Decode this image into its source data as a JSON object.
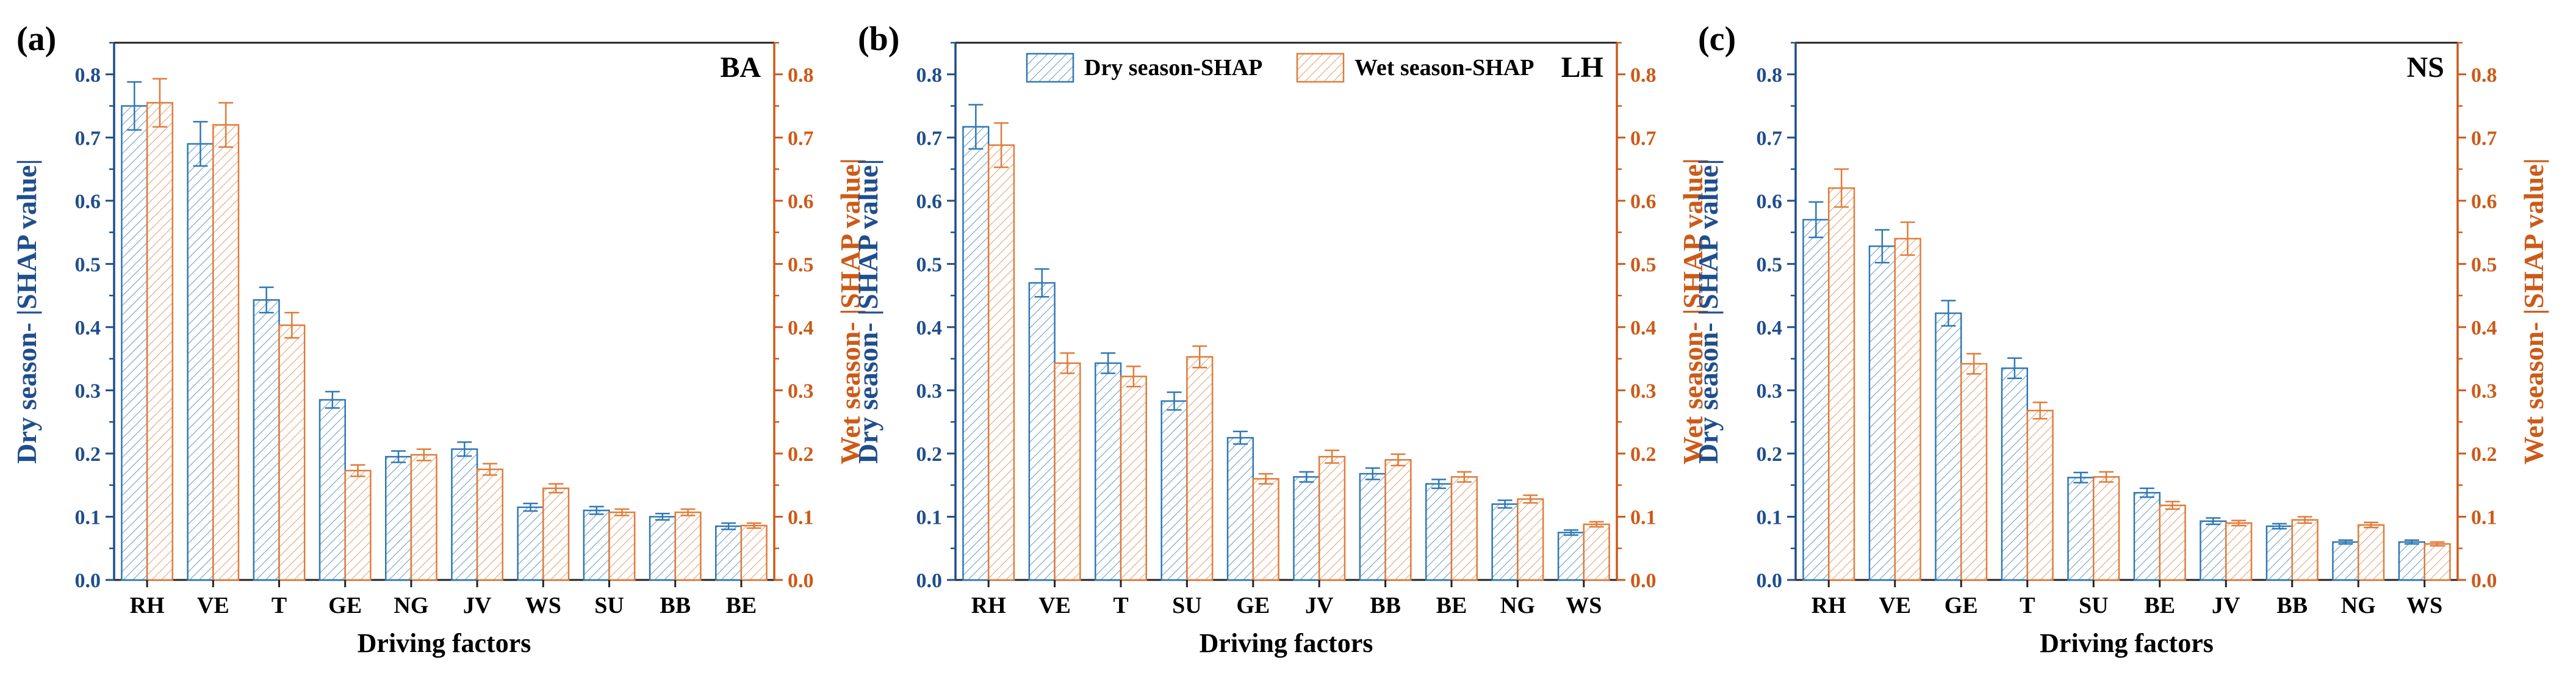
{
  "colors": {
    "dry": "#2f78b4",
    "wet": "#e07b39",
    "dry_axis": "#1f4e8c",
    "wet_axis": "#cc5a18",
    "frame": "#222222"
  },
  "legend": {
    "dry": "Dry season-SHAP",
    "wet": "Wet season-SHAP"
  },
  "chart_data": [
    {
      "type": "bar",
      "panel_label": "(a)",
      "site": "BA",
      "xlabel": "Driving factors",
      "ylabel_left": "Dry season- |SHAP value|",
      "ylabel_right": "Wet season- |SHAP value|",
      "ylim": [
        0,
        0.85
      ],
      "yticks": [
        "0.0",
        "0.1",
        "0.2",
        "0.3",
        "0.4",
        "0.5",
        "0.6",
        "0.7",
        "0.8"
      ],
      "categories": [
        "RH",
        "VE",
        "T",
        "GE",
        "NG",
        "JV",
        "WS",
        "SU",
        "BB",
        "BE"
      ],
      "series": [
        {
          "name": "Dry season-SHAP",
          "values": [
            0.75,
            0.69,
            0.443,
            0.285,
            0.195,
            0.207,
            0.115,
            0.11,
            0.1,
            0.085
          ],
          "errors": [
            0.038,
            0.035,
            0.02,
            0.013,
            0.009,
            0.011,
            0.006,
            0.006,
            0.005,
            0.005
          ]
        },
        {
          "name": "Wet season-SHAP",
          "values": [
            0.755,
            0.72,
            0.403,
            0.173,
            0.198,
            0.175,
            0.145,
            0.107,
            0.107,
            0.086
          ],
          "errors": [
            0.038,
            0.035,
            0.02,
            0.009,
            0.009,
            0.009,
            0.007,
            0.005,
            0.005,
            0.004
          ]
        }
      ]
    },
    {
      "type": "bar",
      "panel_label": "(b)",
      "site": "LH",
      "xlabel": "Driving factors",
      "ylabel_left": "Dry season- |SHAP value|",
      "ylabel_right": "Wet season- |SHAP value|",
      "ylim": [
        0,
        0.85
      ],
      "yticks": [
        "0.0",
        "0.1",
        "0.2",
        "0.3",
        "0.4",
        "0.5",
        "0.6",
        "0.7",
        "0.8"
      ],
      "categories": [
        "RH",
        "VE",
        "T",
        "SU",
        "GE",
        "JV",
        "BB",
        "BE",
        "NG",
        "WS"
      ],
      "series": [
        {
          "name": "Dry season-SHAP",
          "values": [
            0.717,
            0.47,
            0.343,
            0.283,
            0.225,
            0.163,
            0.168,
            0.152,
            0.12,
            0.075
          ],
          "errors": [
            0.035,
            0.022,
            0.016,
            0.014,
            0.01,
            0.008,
            0.009,
            0.007,
            0.006,
            0.004
          ]
        },
        {
          "name": "Wet season-SHAP",
          "values": [
            0.688,
            0.343,
            0.322,
            0.353,
            0.16,
            0.195,
            0.19,
            0.163,
            0.128,
            0.088
          ],
          "errors": [
            0.035,
            0.016,
            0.016,
            0.017,
            0.008,
            0.01,
            0.009,
            0.008,
            0.006,
            0.004
          ]
        }
      ]
    },
    {
      "type": "bar",
      "panel_label": "(c)",
      "site": "NS",
      "xlabel": "Driving factors",
      "ylabel_left": "Dry season- |SHAP value|",
      "ylabel_right": "Wet season- |SHAP value|",
      "ylim": [
        0,
        0.85
      ],
      "yticks": [
        "0.0",
        "0.1",
        "0.2",
        "0.3",
        "0.4",
        "0.5",
        "0.6",
        "0.7",
        "0.8"
      ],
      "categories": [
        "RH",
        "VE",
        "GE",
        "T",
        "SU",
        "BE",
        "JV",
        "BB",
        "NG",
        "WS"
      ],
      "series": [
        {
          "name": "Dry season-SHAP",
          "values": [
            0.57,
            0.528,
            0.422,
            0.335,
            0.162,
            0.138,
            0.093,
            0.085,
            0.06,
            0.06
          ],
          "errors": [
            0.028,
            0.026,
            0.02,
            0.016,
            0.008,
            0.007,
            0.005,
            0.004,
            0.003,
            0.003
          ]
        },
        {
          "name": "Wet season-SHAP",
          "values": [
            0.62,
            0.54,
            0.342,
            0.268,
            0.163,
            0.118,
            0.09,
            0.095,
            0.087,
            0.057
          ],
          "errors": [
            0.03,
            0.026,
            0.016,
            0.013,
            0.008,
            0.006,
            0.004,
            0.005,
            0.004,
            0.003
          ]
        }
      ]
    }
  ]
}
